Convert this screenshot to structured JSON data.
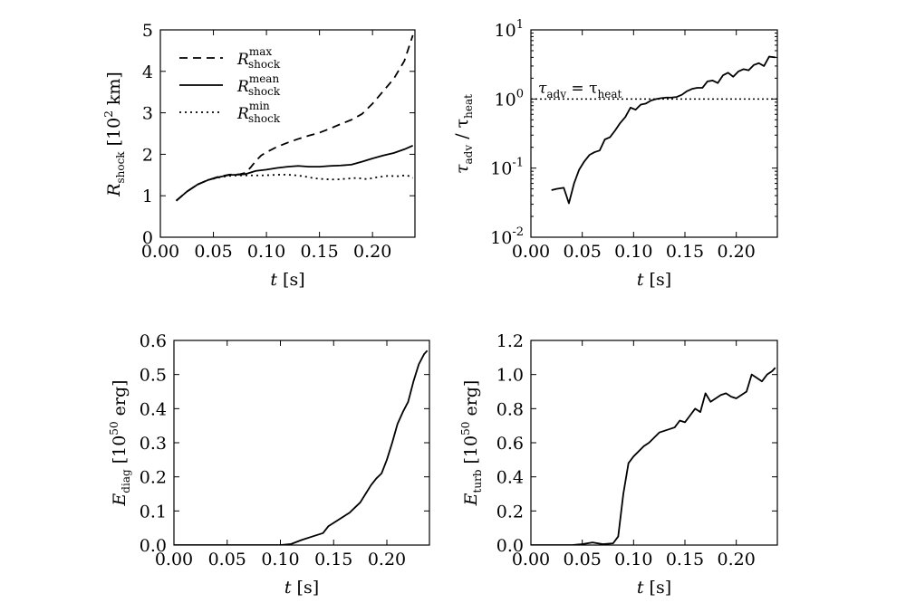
{
  "chart_data": [
    {
      "type": "line",
      "xlabel": "t [s]",
      "ylabel": "R_shock [10^2 km]",
      "xlim": [
        0.0,
        0.24
      ],
      "ylim": [
        0,
        5
      ],
      "xticks": [
        "0.00",
        "0.05",
        "0.10",
        "0.15",
        "0.20"
      ],
      "yticks": [
        "0",
        "1",
        "2",
        "3",
        "4",
        "5"
      ],
      "legend_position": "upper-left",
      "series": [
        {
          "name": "R_shock^max",
          "style": "dashed",
          "x": [
            0.015,
            0.025,
            0.035,
            0.045,
            0.055,
            0.065,
            0.075,
            0.08,
            0.085,
            0.09,
            0.095,
            0.1,
            0.11,
            0.12,
            0.13,
            0.14,
            0.15,
            0.16,
            0.17,
            0.18,
            0.19,
            0.2,
            0.21,
            0.22,
            0.23,
            0.238
          ],
          "y": [
            0.88,
            1.1,
            1.27,
            1.38,
            1.46,
            1.51,
            1.52,
            1.55,
            1.68,
            1.84,
            1.97,
            2.05,
            2.18,
            2.28,
            2.37,
            2.45,
            2.52,
            2.62,
            2.73,
            2.83,
            2.97,
            3.22,
            3.52,
            3.82,
            4.25,
            4.87
          ]
        },
        {
          "name": "R_shock^mean",
          "style": "solid",
          "x": [
            0.015,
            0.025,
            0.035,
            0.045,
            0.055,
            0.065,
            0.075,
            0.08,
            0.09,
            0.1,
            0.11,
            0.12,
            0.13,
            0.14,
            0.15,
            0.16,
            0.17,
            0.18,
            0.19,
            0.2,
            0.21,
            0.22,
            0.23,
            0.238
          ],
          "y": [
            0.88,
            1.1,
            1.27,
            1.38,
            1.45,
            1.5,
            1.51,
            1.52,
            1.6,
            1.63,
            1.67,
            1.7,
            1.72,
            1.7,
            1.7,
            1.72,
            1.73,
            1.75,
            1.82,
            1.9,
            1.97,
            2.03,
            2.12,
            2.21
          ]
        },
        {
          "name": "R_shock^min",
          "style": "dotted",
          "x": [
            0.015,
            0.025,
            0.035,
            0.045,
            0.055,
            0.065,
            0.075,
            0.085,
            0.095,
            0.105,
            0.115,
            0.125,
            0.135,
            0.145,
            0.155,
            0.165,
            0.175,
            0.185,
            0.195,
            0.205,
            0.215,
            0.225,
            0.232,
            0.238
          ],
          "y": [
            0.88,
            1.1,
            1.27,
            1.38,
            1.44,
            1.48,
            1.49,
            1.49,
            1.49,
            1.5,
            1.51,
            1.5,
            1.47,
            1.42,
            1.4,
            1.39,
            1.41,
            1.43,
            1.4,
            1.45,
            1.48,
            1.47,
            1.5,
            1.43
          ]
        }
      ]
    },
    {
      "type": "line",
      "xlabel": "t [s]",
      "ylabel": "τ_adv / τ_heat",
      "yscale": "log",
      "xlim": [
        0.0,
        0.24
      ],
      "ylim": [
        0.01,
        10
      ],
      "xticks": [
        "0.00",
        "0.05",
        "0.10",
        "0.15",
        "0.20"
      ],
      "yticks": [
        "10^-2",
        "10^-1",
        "10^0",
        "10^1"
      ],
      "reference_line": {
        "y": 1,
        "style": "dotted",
        "label": "τ_adv = τ_heat"
      },
      "series": [
        {
          "x": [
            0.02,
            0.025,
            0.032,
            0.037,
            0.042,
            0.047,
            0.052,
            0.057,
            0.062,
            0.067,
            0.072,
            0.077,
            0.082,
            0.087,
            0.092,
            0.097,
            0.102,
            0.107,
            0.112,
            0.117,
            0.122,
            0.127,
            0.132,
            0.137,
            0.142,
            0.147,
            0.152,
            0.157,
            0.162,
            0.167,
            0.172,
            0.177,
            0.182,
            0.187,
            0.192,
            0.197,
            0.202,
            0.207,
            0.212,
            0.217,
            0.222,
            0.227,
            0.232,
            0.238
          ],
          "y": [
            0.048,
            0.05,
            0.052,
            0.031,
            0.06,
            0.095,
            0.125,
            0.155,
            0.17,
            0.18,
            0.26,
            0.28,
            0.35,
            0.45,
            0.55,
            0.75,
            0.7,
            0.83,
            0.86,
            0.95,
            1.0,
            1.03,
            1.05,
            1.05,
            1.07,
            1.15,
            1.3,
            1.4,
            1.45,
            1.45,
            1.8,
            1.85,
            1.7,
            2.2,
            2.4,
            2.1,
            2.5,
            2.7,
            2.6,
            3.1,
            3.3,
            3.0,
            4.1,
            4.0
          ]
        }
      ]
    },
    {
      "type": "line",
      "xlabel": "t [s]",
      "ylabel": "E_diag [10^50 erg]",
      "xlim": [
        0.0,
        0.24
      ],
      "ylim": [
        0,
        0.6
      ],
      "xticks": [
        "0.00",
        "0.05",
        "0.10",
        "0.15",
        "0.20"
      ],
      "yticks": [
        "0.0",
        "0.1",
        "0.2",
        "0.3",
        "0.4",
        "0.5",
        "0.6"
      ],
      "series": [
        {
          "x": [
            0.0,
            0.1,
            0.11,
            0.12,
            0.13,
            0.14,
            0.145,
            0.15,
            0.155,
            0.16,
            0.165,
            0.17,
            0.175,
            0.18,
            0.185,
            0.19,
            0.195,
            0.2,
            0.205,
            0.21,
            0.215,
            0.22,
            0.225,
            0.23,
            0.235,
            0.238
          ],
          "y": [
            0.0,
            0.0,
            0.003,
            0.015,
            0.025,
            0.035,
            0.055,
            0.065,
            0.075,
            0.085,
            0.095,
            0.11,
            0.125,
            0.15,
            0.175,
            0.195,
            0.21,
            0.25,
            0.3,
            0.355,
            0.39,
            0.42,
            0.48,
            0.53,
            0.56,
            0.57
          ]
        }
      ]
    },
    {
      "type": "line",
      "xlabel": "t [s]",
      "ylabel": "E_turb [10^50 erg]",
      "xlim": [
        0.0,
        0.24
      ],
      "ylim": [
        0,
        1.2
      ],
      "xticks": [
        "0.00",
        "0.05",
        "0.10",
        "0.15",
        "0.20"
      ],
      "yticks": [
        "0.0",
        "0.2",
        "0.4",
        "0.6",
        "0.8",
        "1.0",
        "1.2"
      ],
      "series": [
        {
          "x": [
            0.0,
            0.04,
            0.05,
            0.06,
            0.07,
            0.08,
            0.085,
            0.09,
            0.095,
            0.1,
            0.11,
            0.115,
            0.12,
            0.125,
            0.13,
            0.14,
            0.145,
            0.15,
            0.155,
            0.16,
            0.165,
            0.17,
            0.175,
            0.18,
            0.185,
            0.19,
            0.195,
            0.2,
            0.205,
            0.21,
            0.215,
            0.22,
            0.225,
            0.23,
            0.235,
            0.238
          ],
          "y": [
            0.0,
            0.0,
            0.005,
            0.015,
            0.005,
            0.01,
            0.05,
            0.3,
            0.48,
            0.52,
            0.58,
            0.6,
            0.63,
            0.66,
            0.67,
            0.69,
            0.73,
            0.72,
            0.76,
            0.8,
            0.78,
            0.89,
            0.84,
            0.86,
            0.88,
            0.89,
            0.87,
            0.86,
            0.88,
            0.9,
            1.0,
            0.98,
            0.96,
            1.0,
            1.02,
            1.04
          ]
        }
      ]
    }
  ]
}
